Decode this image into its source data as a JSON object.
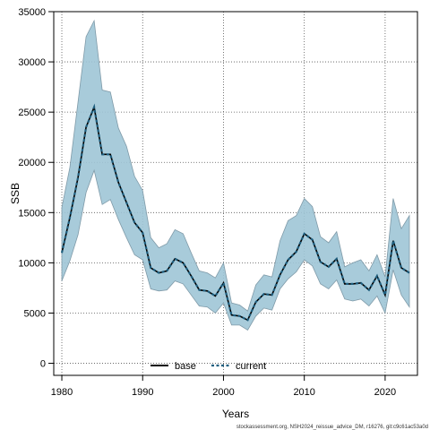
{
  "chart_data": {
    "type": "area",
    "xlabel": "Years",
    "ylabel": "SSB",
    "xlim": [
      1979,
      2024
    ],
    "ylim": [
      -1200,
      35000
    ],
    "xticks": [
      1980,
      1990,
      2000,
      2010,
      2020
    ],
    "yticks": [
      0,
      5000,
      10000,
      15000,
      20000,
      25000,
      30000,
      35000
    ],
    "grid": true,
    "legend_position": "bottom-center",
    "x": [
      1980,
      1981,
      1982,
      1983,
      1984,
      1985,
      1986,
      1987,
      1988,
      1989,
      1990,
      1991,
      1992,
      1993,
      1994,
      1995,
      1996,
      1997,
      1998,
      1999,
      2000,
      2001,
      2002,
      2003,
      2004,
      2005,
      2006,
      2007,
      2008,
      2009,
      2010,
      2011,
      2012,
      2013,
      2014,
      2015,
      2016,
      2017,
      2018,
      2019,
      2020,
      2021,
      2022,
      2023
    ],
    "series": [
      {
        "name": "base",
        "color": "#000000",
        "values": [
          11000,
          14500,
          18500,
          23500,
          25500,
          20800,
          20800,
          18000,
          16000,
          14000,
          13000,
          9500,
          9000,
          9200,
          10400,
          10000,
          8700,
          7300,
          7200,
          6700,
          8000,
          4800,
          4700,
          4300,
          6100,
          6900,
          6800,
          8800,
          10300,
          11100,
          12900,
          12300,
          10100,
          9600,
          10400,
          7900,
          7900,
          8000,
          7300,
          8700,
          6800,
          12200,
          9500,
          9000
        ],
        "lower": [
          8200,
          10200,
          12800,
          17000,
          19200,
          15800,
          16300,
          14300,
          12500,
          10800,
          10300,
          7400,
          7200,
          7300,
          8200,
          7900,
          6800,
          5700,
          5600,
          5000,
          6000,
          3800,
          3800,
          3300,
          4700,
          5500,
          5300,
          7400,
          8400,
          9100,
          10300,
          9700,
          7900,
          7400,
          8300,
          6400,
          6200,
          6400,
          5700,
          6700,
          5000,
          9300,
          6800,
          5600
        ],
        "upper": [
          15500,
          19500,
          26000,
          32500,
          34100,
          27200,
          27000,
          23400,
          21600,
          18600,
          17200,
          12500,
          11500,
          11900,
          13300,
          12900,
          11000,
          9200,
          9000,
          8500,
          10000,
          6000,
          5800,
          5200,
          7800,
          8800,
          8600,
          12200,
          14200,
          14700,
          16400,
          15600,
          12600,
          12000,
          13100,
          9600,
          10000,
          10300,
          9200,
          10800,
          8600,
          16400,
          13400,
          14700
        ]
      },
      {
        "name": "current",
        "color": "#1f5f7f",
        "values": [
          11000,
          14500,
          18500,
          23500,
          25500,
          20800,
          20800,
          18000,
          16000,
          14000,
          13000,
          9500,
          9000,
          9200,
          10400,
          10000,
          8700,
          7300,
          7200,
          6700,
          8000,
          4800,
          4700,
          4300,
          6100,
          6900,
          6800,
          8800,
          10300,
          11100,
          12900,
          12300,
          10100,
          9600,
          10400,
          7900,
          7900,
          8000,
          7300,
          8700,
          6800,
          12200,
          9500,
          9000
        ]
      }
    ],
    "band_color": "#9ec5d6",
    "footnote": "stockassessment.org, NSH2024_reissue_advice_DM, r16276, git:c9c61ac53a0d"
  }
}
